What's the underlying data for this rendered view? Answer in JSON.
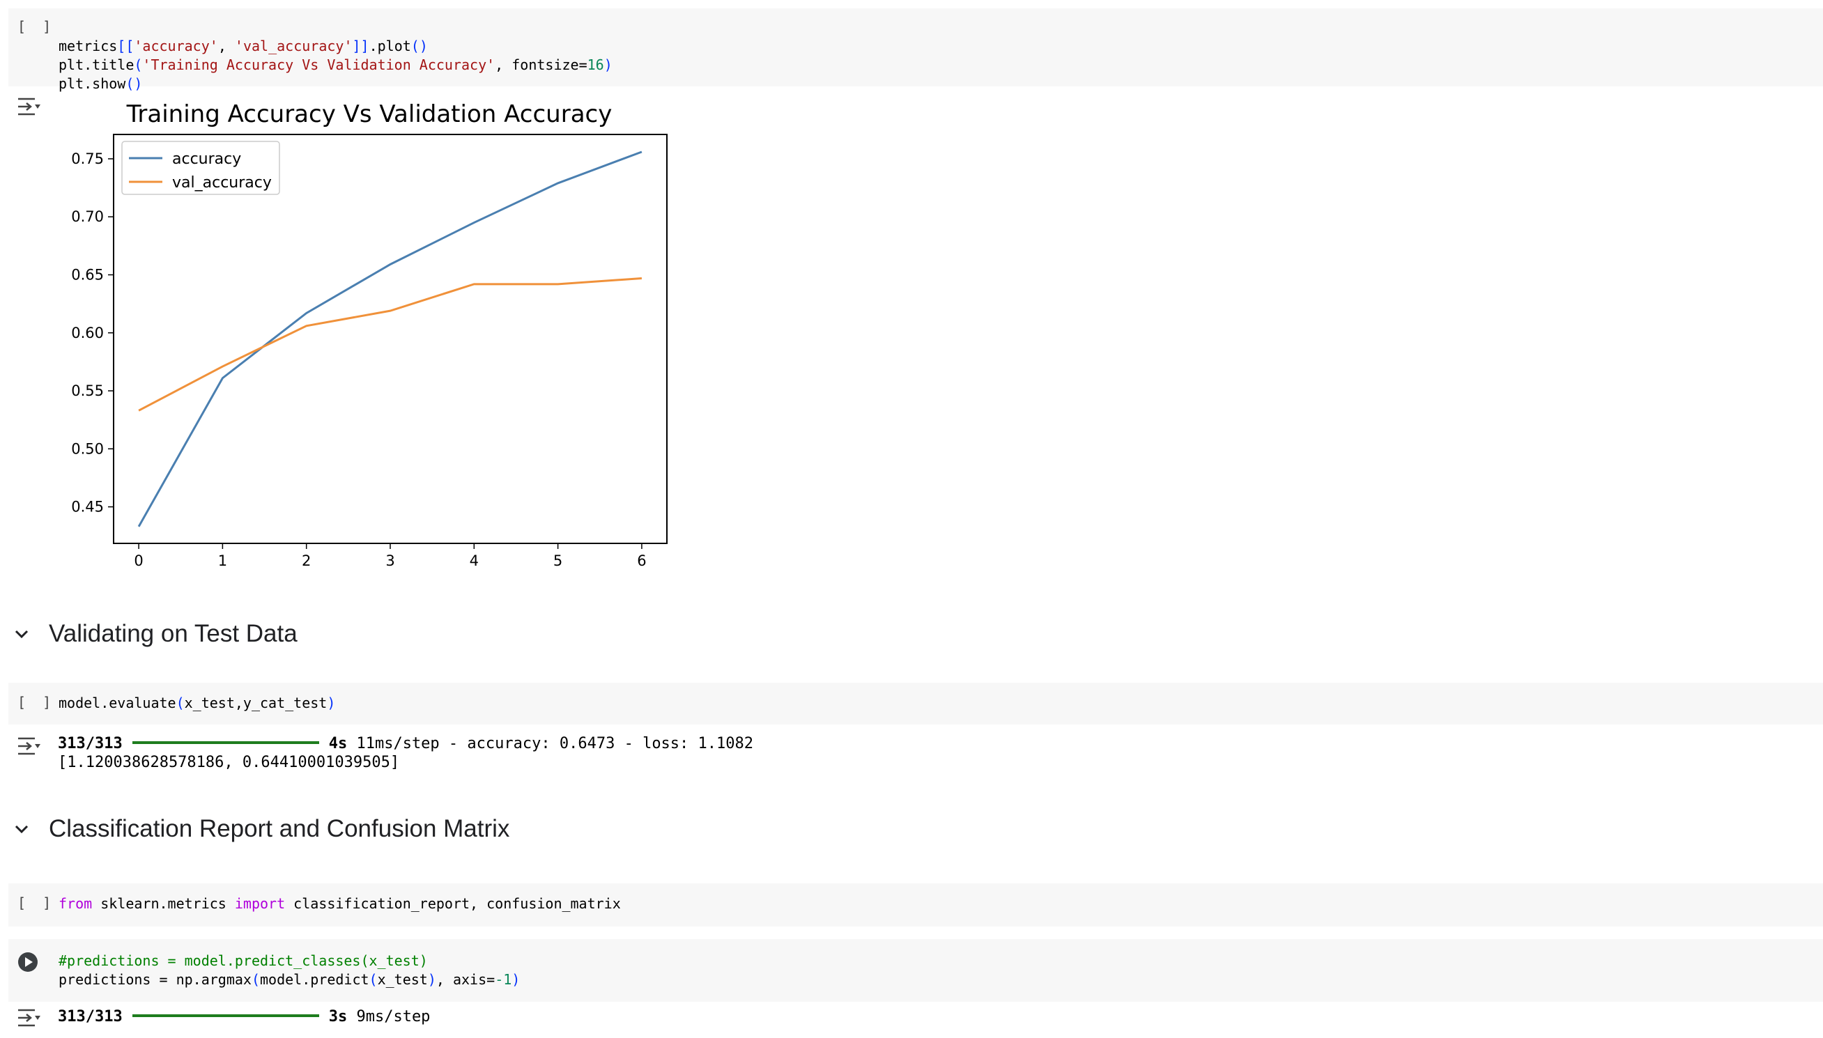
{
  "cells": {
    "plot_cell": {
      "bracket": "[ ]",
      "line1": {
        "a": "metrics",
        "b": "[[",
        "c": "'accuracy'",
        "d": ", ",
        "e": "'val_accuracy'",
        "f": "]]",
        "g": ".plot",
        "h": "()"
      },
      "line2": {
        "a": "plt.title",
        "b": "(",
        "c": "'Training Accuracy Vs Validation Accuracy'",
        "d": ", fontsize=",
        "e": "16",
        "f": ")"
      },
      "line3": {
        "a": "plt.show",
        "b": "()"
      }
    },
    "evaluate_cell": {
      "bracket": "[ ]",
      "code": {
        "a": "model.evaluate",
        "b": "(",
        "c": "x_test,y_cat_test",
        "d": ")"
      },
      "output": {
        "progress": "313/313",
        "time": "4s",
        "rest": "11ms/step - accuracy: 0.6473 - loss: 1.1082",
        "result": "[1.120038628578186, 0.64410001039505]"
      }
    },
    "import_cell": {
      "bracket": "[ ]",
      "code": {
        "kw1": "from",
        "mod": " sklearn.metrics ",
        "kw2": "import",
        "rest": " classification_report, confusion_matrix"
      }
    },
    "predict_cell": {
      "comment": "#predictions = model.predict_classes(x_test)",
      "line2": {
        "a": "predictions = np.argmax",
        "b": "(",
        "c": "model.predict",
        "d": "(",
        "e": "x_test",
        "f": ")",
        "g": ", axis=",
        "h": "-1",
        "i": ")"
      },
      "output": {
        "progress": "313/313",
        "time": "3s",
        "rest": "9ms/step"
      }
    }
  },
  "sections": {
    "validating": "Validating on Test Data",
    "classification": "Classification Report and Confusion Matrix"
  },
  "chart_data": {
    "type": "line",
    "title": "Training Accuracy Vs Validation Accuracy",
    "x": [
      0,
      1,
      2,
      3,
      4,
      5,
      6
    ],
    "series": [
      {
        "name": "accuracy",
        "color": "#4a7fb0",
        "values": [
          0.433,
          0.561,
          0.617,
          0.659,
          0.695,
          0.729,
          0.756
        ]
      },
      {
        "name": "val_accuracy",
        "color": "#f0913a",
        "values": [
          0.533,
          0.571,
          0.606,
          0.619,
          0.642,
          0.642,
          0.647
        ]
      }
    ],
    "xlim": [
      -0.3,
      6.3
    ],
    "ylim": [
      0.4185,
      0.771
    ],
    "xticks": [
      "0",
      "1",
      "2",
      "3",
      "4",
      "5",
      "6"
    ],
    "yticks": [
      "0.45",
      "0.50",
      "0.55",
      "0.60",
      "0.65",
      "0.70",
      "0.75"
    ],
    "ytick_values": [
      0.45,
      0.5,
      0.55,
      0.6,
      0.65,
      0.7,
      0.75
    ],
    "legend": "upper-left",
    "grid": false
  }
}
